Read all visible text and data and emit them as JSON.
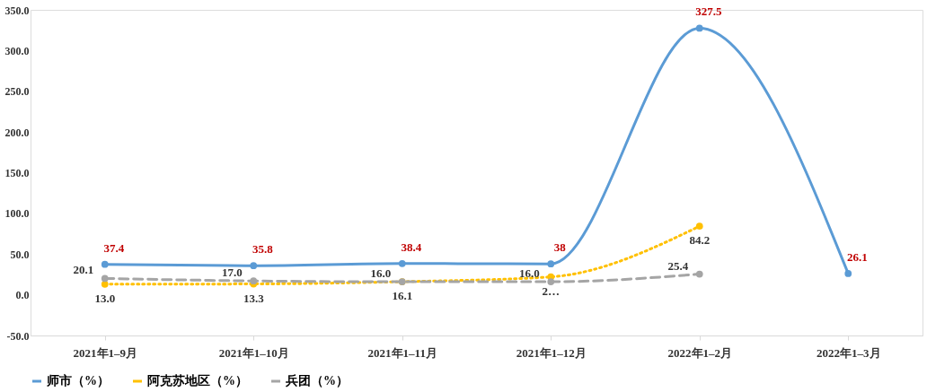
{
  "chart_data": {
    "type": "line",
    "categories": [
      "2021年1–9月",
      "2021年1–10月",
      "2021年1–11月",
      "2021年1–12月",
      "2022年1–2月",
      "2022年1–3月"
    ],
    "series": [
      {
        "name": "师市（%）",
        "color": "#5b9bd5",
        "line_style": "solid",
        "values": [
          37.4,
          35.8,
          38.4,
          38,
          327.5,
          26.1
        ],
        "value_labels": [
          "37.4",
          "35.8",
          "38.4",
          "38",
          "327.5",
          "26.1"
        ]
      },
      {
        "name": "阿克苏地区（%）",
        "color": "#ffc000",
        "line_style": "dotted",
        "values": [
          13.0,
          13.3,
          16.1,
          22,
          84.2,
          null
        ],
        "value_labels": [
          "13.0",
          "13.3",
          "16.1",
          "2…",
          "84.2",
          null
        ]
      },
      {
        "name": "兵团（%）",
        "color": "#a5a5a5",
        "line_style": "dashed",
        "values": [
          20.1,
          17.0,
          16.0,
          16.0,
          25.4,
          null
        ],
        "value_labels": [
          "20.1",
          "17.0",
          "16.0",
          "16.0",
          "25.4",
          null
        ]
      }
    ],
    "ylim": [
      -50,
      350
    ],
    "yticks": [
      {
        "value": -50,
        "label": "-50.0"
      },
      {
        "value": 0,
        "label": "0.0"
      },
      {
        "value": 50,
        "label": "50.0"
      },
      {
        "value": 100,
        "label": "100.0"
      },
      {
        "value": 150,
        "label": "150.0"
      },
      {
        "value": 200,
        "label": "200.0"
      },
      {
        "value": 250,
        "label": "250.0"
      },
      {
        "value": 300,
        "label": "300.0"
      },
      {
        "value": 350,
        "label": "350.0"
      }
    ],
    "grid": false,
    "legend": "bottom",
    "marker": "circle"
  }
}
